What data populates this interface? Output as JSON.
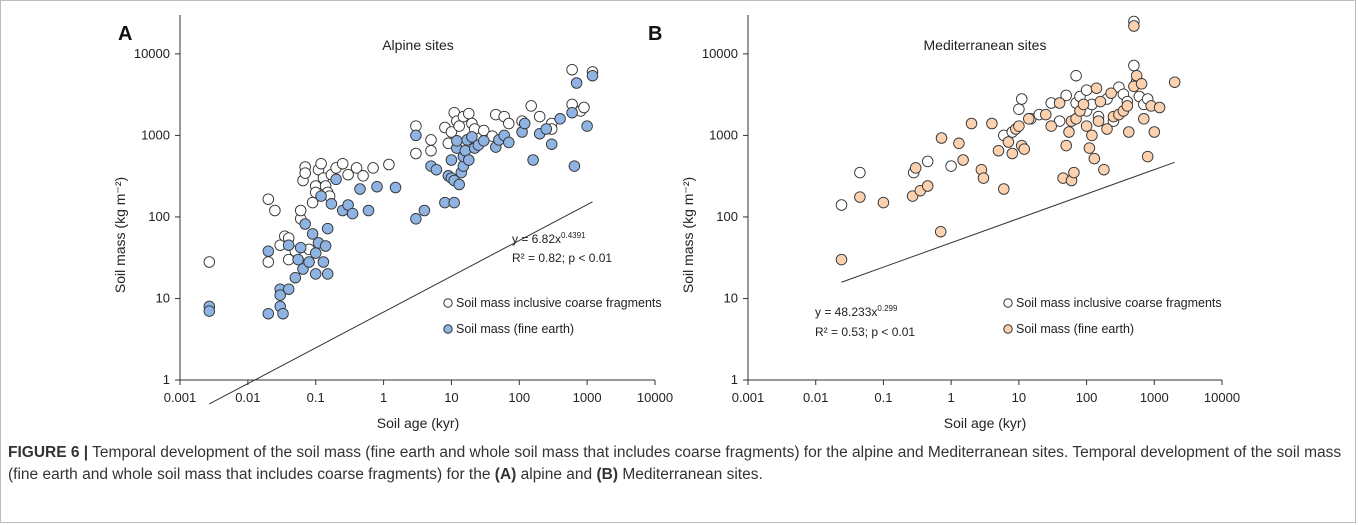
{
  "figure": {
    "caption_label": "FIGURE 6 |",
    "caption_text_1": "Temporal development of the soil mass (fine earth and whole soil mass that includes coarse fragments) for the alpine and Mediterranean sites. Temporal development of the soil mass (fine earth and whole soil mass that includes coarse fragments) for the",
    "caption_ref_a": "(A)",
    "caption_text_2": "alpine and",
    "caption_ref_b": "(B)",
    "caption_text_3": "Mediterranean sites."
  },
  "colors": {
    "open_fill": "#ffffff",
    "blue_fill": "#8fb4e3",
    "peach_fill": "#fbd1b0",
    "marker_stroke": "#333333",
    "axis": "#333333"
  },
  "chart_data": [
    {
      "type": "scatter",
      "panel_label": "A",
      "title": "Alpine sites",
      "xlabel": "Soil age (kyr)",
      "ylabel": "Soil mass (kg m⁻²)",
      "x_scale": "log",
      "y_scale": "log",
      "xlim": [
        0.001,
        10000
      ],
      "ylim": [
        1,
        30000
      ],
      "x_ticks": [
        "0.001",
        "0.01",
        "0.1",
        "1",
        "10",
        "100",
        "1000",
        "10000"
      ],
      "y_ticks": [
        "1",
        "10",
        "100",
        "1000",
        "10000"
      ],
      "grid": false,
      "legend_position": "lower-right",
      "equation": "y = 6.82x",
      "equation_exp": "0.4391",
      "stats": "R² = 0.82; p < 0.01",
      "trendline": {
        "a": 6.82,
        "b": 0.4391,
        "x_range": [
          0.0027,
          1200
        ]
      },
      "series": [
        {
          "name": "Soil mass inclusive coarse fragments",
          "marker": "open",
          "points": [
            [
              0.0027,
              28
            ],
            [
              0.02,
              165
            ],
            [
              0.02,
              28
            ],
            [
              0.025,
              120
            ],
            [
              0.03,
              45
            ],
            [
              0.035,
              58
            ],
            [
              0.04,
              55
            ],
            [
              0.04,
              30
            ],
            [
              0.05,
              38
            ],
            [
              0.06,
              95
            ],
            [
              0.06,
              120
            ],
            [
              0.065,
              280
            ],
            [
              0.07,
              410
            ],
            [
              0.07,
              345
            ],
            [
              0.08,
              40
            ],
            [
              0.09,
              150
            ],
            [
              0.1,
              240
            ],
            [
              0.1,
              200
            ],
            [
              0.11,
              380
            ],
            [
              0.12,
              450
            ],
            [
              0.13,
              300
            ],
            [
              0.14,
              240
            ],
            [
              0.15,
              200
            ],
            [
              0.16,
              180
            ],
            [
              0.17,
              330
            ],
            [
              0.2,
              400
            ],
            [
              0.25,
              450
            ],
            [
              0.3,
              330
            ],
            [
              0.4,
              400
            ],
            [
              0.5,
              320
            ],
            [
              0.7,
              400
            ],
            [
              1.2,
              440
            ],
            [
              3,
              1300
            ],
            [
              3,
              600
            ],
            [
              5,
              880
            ],
            [
              5,
              650
            ],
            [
              8,
              1250
            ],
            [
              9,
              800
            ],
            [
              10,
              1100
            ],
            [
              11,
              1900
            ],
            [
              12,
              1500
            ],
            [
              13,
              1300
            ],
            [
              15,
              1700
            ],
            [
              18,
              1850
            ],
            [
              20,
              1400
            ],
            [
              22,
              1200
            ],
            [
              30,
              1150
            ],
            [
              40,
              980
            ],
            [
              45,
              1800
            ],
            [
              60,
              1700
            ],
            [
              70,
              1400
            ],
            [
              110,
              1500
            ],
            [
              150,
              2300
            ],
            [
              200,
              1700
            ],
            [
              300,
              1400
            ],
            [
              300,
              1200
            ],
            [
              600,
              6400
            ],
            [
              600,
              2400
            ],
            [
              800,
              2000
            ],
            [
              900,
              2200
            ],
            [
              1200,
              6000
            ]
          ]
        },
        {
          "name": "Soil mass (fine earth)",
          "marker": "filled",
          "points": [
            [
              0.0027,
              8
            ],
            [
              0.0027,
              7
            ],
            [
              0.02,
              6.5
            ],
            [
              0.02,
              38
            ],
            [
              0.03,
              13
            ],
            [
              0.03,
              11
            ],
            [
              0.03,
              8
            ],
            [
              0.033,
              6.5
            ],
            [
              0.04,
              45
            ],
            [
              0.04,
              13
            ],
            [
              0.05,
              18
            ],
            [
              0.055,
              30
            ],
            [
              0.06,
              42
            ],
            [
              0.065,
              23
            ],
            [
              0.07,
              82
            ],
            [
              0.08,
              28
            ],
            [
              0.09,
              62
            ],
            [
              0.1,
              36
            ],
            [
              0.1,
              20
            ],
            [
              0.11,
              48
            ],
            [
              0.12,
              180
            ],
            [
              0.13,
              28
            ],
            [
              0.14,
              44
            ],
            [
              0.15,
              72
            ],
            [
              0.15,
              20
            ],
            [
              0.17,
              145
            ],
            [
              0.2,
              290
            ],
            [
              0.25,
              120
            ],
            [
              0.3,
              140
            ],
            [
              0.35,
              110
            ],
            [
              0.45,
              220
            ],
            [
              0.6,
              120
            ],
            [
              0.8,
              235
            ],
            [
              1.5,
              230
            ],
            [
              3,
              95
            ],
            [
              3,
              1000
            ],
            [
              4,
              120
            ],
            [
              5,
              420
            ],
            [
              6,
              380
            ],
            [
              8,
              150
            ],
            [
              9,
              320
            ],
            [
              10,
              300
            ],
            [
              10,
              500
            ],
            [
              11,
              150
            ],
            [
              11,
              280
            ],
            [
              12,
              700
            ],
            [
              12,
              860
            ],
            [
              13,
              250
            ],
            [
              14,
              350
            ],
            [
              15,
              420
            ],
            [
              15,
              550
            ],
            [
              16,
              650
            ],
            [
              17,
              880
            ],
            [
              18,
              500
            ],
            [
              20,
              960
            ],
            [
              22,
              700
            ],
            [
              25,
              760
            ],
            [
              30,
              860
            ],
            [
              45,
              720
            ],
            [
              50,
              880
            ],
            [
              60,
              1000
            ],
            [
              70,
              820
            ],
            [
              110,
              1100
            ],
            [
              120,
              1400
            ],
            [
              160,
              500
            ],
            [
              200,
              1050
            ],
            [
              250,
              1200
            ],
            [
              300,
              780
            ],
            [
              400,
              1600
            ],
            [
              600,
              1900
            ],
            [
              650,
              420
            ],
            [
              700,
              4400
            ],
            [
              1200,
              5400
            ],
            [
              1000,
              1300
            ]
          ]
        }
      ]
    },
    {
      "type": "scatter",
      "panel_label": "B",
      "title": "Mediterranean sites",
      "xlabel": "Soil age (kyr)",
      "ylabel": "Soil mass (kg m⁻²)",
      "x_scale": "log",
      "y_scale": "log",
      "xlim": [
        0.001,
        10000
      ],
      "ylim": [
        1,
        30000
      ],
      "x_ticks": [
        "0.001",
        "0.01",
        "0.1",
        "1",
        "10",
        "100",
        "1000",
        "10000"
      ],
      "y_ticks": [
        "1",
        "10",
        "100",
        "1000",
        "10000"
      ],
      "grid": false,
      "legend_position": "lower-right",
      "equation": "y = 48.233x",
      "equation_exp": "0.299",
      "stats": "R² = 0.53; p < 0.01",
      "trendline": {
        "a": 48.233,
        "b": 0.299,
        "x_range": [
          0.024,
          2000
        ]
      },
      "series": [
        {
          "name": "Soil mass inclusive coarse fragments",
          "marker": "open",
          "points": [
            [
              0.024,
              140
            ],
            [
              0.045,
              350
            ],
            [
              0.28,
              350
            ],
            [
              0.45,
              480
            ],
            [
              1,
              420
            ],
            [
              6,
              1000
            ],
            [
              8,
              1100
            ],
            [
              10,
              2100
            ],
            [
              11,
              2800
            ],
            [
              15,
              1600
            ],
            [
              20,
              1800
            ],
            [
              30,
              2500
            ],
            [
              40,
              1500
            ],
            [
              50,
              3100
            ],
            [
              70,
              5400
            ],
            [
              70,
              2500
            ],
            [
              80,
              3000
            ],
            [
              100,
              2000
            ],
            [
              100,
              3600
            ],
            [
              120,
              2400
            ],
            [
              150,
              1700
            ],
            [
              200,
              2800
            ],
            [
              250,
              1500
            ],
            [
              300,
              3900
            ],
            [
              350,
              3200
            ],
            [
              400,
              2600
            ],
            [
              500,
              7200
            ],
            [
              500,
              25000
            ],
            [
              550,
              4600
            ],
            [
              600,
              3000
            ],
            [
              700,
              2400
            ],
            [
              800,
              2800
            ]
          ]
        },
        {
          "name": "Soil mass (fine earth)",
          "marker": "filled",
          "points": [
            [
              0.024,
              30
            ],
            [
              0.045,
              175
            ],
            [
              0.1,
              150
            ],
            [
              0.27,
              180
            ],
            [
              0.3,
              400
            ],
            [
              0.35,
              210
            ],
            [
              0.45,
              240
            ],
            [
              0.7,
              66
            ],
            [
              0.72,
              930
            ],
            [
              1.3,
              800
            ],
            [
              1.5,
              500
            ],
            [
              2,
              1400
            ],
            [
              2.8,
              380
            ],
            [
              3,
              300
            ],
            [
              4,
              1400
            ],
            [
              5,
              650
            ],
            [
              6,
              220
            ],
            [
              7,
              830
            ],
            [
              8,
              600
            ],
            [
              9,
              1200
            ],
            [
              10,
              1300
            ],
            [
              11,
              750
            ],
            [
              12,
              680
            ],
            [
              14,
              1600
            ],
            [
              25,
              1800
            ],
            [
              30,
              1300
            ],
            [
              40,
              2500
            ],
            [
              45,
              300
            ],
            [
              50,
              750
            ],
            [
              55,
              1100
            ],
            [
              60,
              280
            ],
            [
              60,
              1500
            ],
            [
              65,
              350
            ],
            [
              70,
              1600
            ],
            [
              80,
              2000
            ],
            [
              90,
              2400
            ],
            [
              100,
              1300
            ],
            [
              110,
              700
            ],
            [
              120,
              1000
            ],
            [
              130,
              520
            ],
            [
              140,
              3800
            ],
            [
              150,
              1500
            ],
            [
              160,
              2600
            ],
            [
              180,
              380
            ],
            [
              200,
              1200
            ],
            [
              230,
              3300
            ],
            [
              250,
              1700
            ],
            [
              300,
              1800
            ],
            [
              350,
              2000
            ],
            [
              400,
              2300
            ],
            [
              420,
              1100
            ],
            [
              500,
              4000
            ],
            [
              500,
              22000
            ],
            [
              550,
              5400
            ],
            [
              650,
              4300
            ],
            [
              700,
              1600
            ],
            [
              800,
              550
            ],
            [
              900,
              2300
            ],
            [
              1000,
              1100
            ],
            [
              1200,
              2200
            ],
            [
              2000,
              4500
            ]
          ]
        }
      ]
    }
  ]
}
